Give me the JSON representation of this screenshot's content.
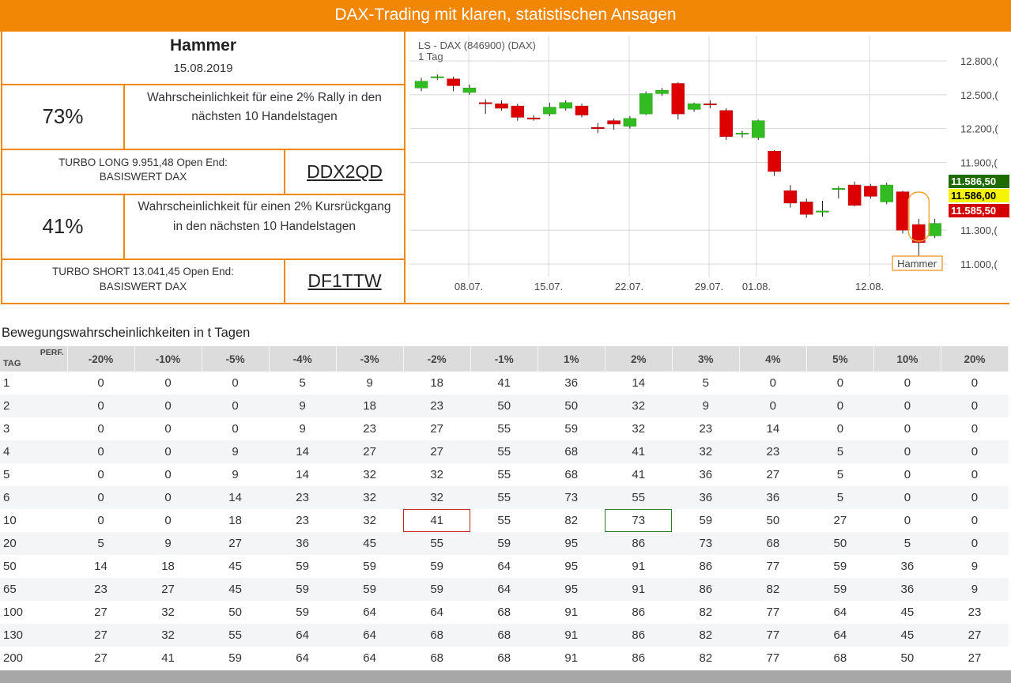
{
  "banner": "DAX-Trading mit klaren, statistischen Ansagen",
  "pattern": {
    "name": "Hammer",
    "date": "15.08.2019"
  },
  "long": {
    "pct": "73%",
    "desc_line1": "Wahrscheinlichkeit für eine 2% Rally in den",
    "desc_line2": "nächsten 10 Handelstagen",
    "turbo_line1": "TURBO LONG 9.951,48 Open End:",
    "turbo_line2": "BASISWERT DAX",
    "code": "DDX2QD"
  },
  "short": {
    "pct": "41%",
    "desc_line1": "Wahrscheinlichkeit für einen 2% Kursrückgang",
    "desc_line2": "in den nächsten 10 Handelstagen",
    "turbo_line1": "TURBO SHORT 13.041,45 Open End:",
    "turbo_line2": "BASISWERT DAX",
    "code": "DF1TTW"
  },
  "chart_data": {
    "type": "candlestick",
    "title": "LS - DAX (846900) (DAX)",
    "subtitle": "1 Tag",
    "y_ticks": [
      "12.800,(",
      "12.500,(",
      "12.200,(",
      "11.900,(",
      "11.300,(",
      "11.000,("
    ],
    "y_tick_values": [
      12800,
      12500,
      12200,
      11900,
      11300,
      11000
    ],
    "x_ticks": [
      "08.07.",
      "15.07.",
      "22.07.",
      "29.07.",
      "01.08.",
      "12.08."
    ],
    "price_tags": [
      {
        "label": "11.586,50",
        "color": "#1e6b00",
        "text_color": "#ffffff"
      },
      {
        "label": "11.586,00",
        "color": "#f5f500",
        "text_color": "#000000"
      },
      {
        "label": "11.585,50",
        "color": "#d40000",
        "text_color": "#ffffff"
      }
    ],
    "annotation": "Hammer",
    "up_color": "#33bb22",
    "down_color": "#dd0000",
    "candles": [
      {
        "o": 12560,
        "c": 12620,
        "h": 12650,
        "l": 12530
      },
      {
        "o": 12650,
        "c": 12660,
        "h": 12680,
        "l": 12630
      },
      {
        "o": 12640,
        "c": 12580,
        "h": 12660,
        "l": 12530
      },
      {
        "o": 12520,
        "c": 12560,
        "h": 12590,
        "l": 12500
      },
      {
        "o": 12430,
        "c": 12420,
        "h": 12460,
        "l": 12330
      },
      {
        "o": 12420,
        "c": 12380,
        "h": 12450,
        "l": 12360
      },
      {
        "o": 12400,
        "c": 12300,
        "h": 12420,
        "l": 12270
      },
      {
        "o": 12295,
        "c": 12285,
        "h": 12320,
        "l": 12270
      },
      {
        "o": 12330,
        "c": 12390,
        "h": 12430,
        "l": 12310
      },
      {
        "o": 12380,
        "c": 12430,
        "h": 12450,
        "l": 12360
      },
      {
        "o": 12400,
        "c": 12320,
        "h": 12420,
        "l": 12300
      },
      {
        "o": 12210,
        "c": 12200,
        "h": 12250,
        "l": 12160
      },
      {
        "o": 12270,
        "c": 12240,
        "h": 12290,
        "l": 12190
      },
      {
        "o": 12220,
        "c": 12290,
        "h": 12310,
        "l": 12200
      },
      {
        "o": 12330,
        "c": 12510,
        "h": 12530,
        "l": 12320
      },
      {
        "o": 12510,
        "c": 12540,
        "h": 12560,
        "l": 12490
      },
      {
        "o": 12600,
        "c": 12330,
        "h": 12610,
        "l": 12280
      },
      {
        "o": 12370,
        "c": 12420,
        "h": 12430,
        "l": 12350
      },
      {
        "o": 12420,
        "c": 12410,
        "h": 12450,
        "l": 12380
      },
      {
        "o": 12360,
        "c": 12130,
        "h": 12380,
        "l": 12100
      },
      {
        "o": 12150,
        "c": 12160,
        "h": 12180,
        "l": 12120
      },
      {
        "o": 12120,
        "c": 12270,
        "h": 12280,
        "l": 12100
      },
      {
        "o": 12000,
        "c": 11820,
        "h": 12010,
        "l": 11780
      },
      {
        "o": 11650,
        "c": 11540,
        "h": 11700,
        "l": 11500
      },
      {
        "o": 11550,
        "c": 11440,
        "h": 11580,
        "l": 11410
      },
      {
        "o": 11460,
        "c": 11470,
        "h": 11560,
        "l": 11420
      },
      {
        "o": 11660,
        "c": 11670,
        "h": 11690,
        "l": 11580
      },
      {
        "o": 11700,
        "c": 11520,
        "h": 11730,
        "l": 11510
      },
      {
        "o": 11690,
        "c": 11600,
        "h": 11710,
        "l": 11580
      },
      {
        "o": 11550,
        "c": 11700,
        "h": 11720,
        "l": 11530
      },
      {
        "o": 11640,
        "c": 11300,
        "h": 11650,
        "l": 11270
      },
      {
        "o": 11350,
        "c": 11190,
        "h": 11400,
        "l": 10960
      },
      {
        "o": 11250,
        "c": 11360,
        "h": 11400,
        "l": 11230
      }
    ]
  },
  "table_title": "Bewegungswahrscheinlichkeiten in t Tagen",
  "table": {
    "perf_label": "PERF.",
    "tag_label": "TAG",
    "columns": [
      "-20%",
      "-10%",
      "-5%",
      "-4%",
      "-3%",
      "-2%",
      "-1%",
      "1%",
      "2%",
      "3%",
      "4%",
      "5%",
      "10%",
      "20%"
    ],
    "rows": [
      {
        "tag": "1",
        "vals": [
          "0",
          "0",
          "0",
          "5",
          "9",
          "18",
          "41",
          "36",
          "14",
          "5",
          "0",
          "0",
          "0",
          "0"
        ]
      },
      {
        "tag": "2",
        "vals": [
          "0",
          "0",
          "0",
          "9",
          "18",
          "23",
          "50",
          "50",
          "32",
          "9",
          "0",
          "0",
          "0",
          "0"
        ]
      },
      {
        "tag": "3",
        "vals": [
          "0",
          "0",
          "0",
          "9",
          "23",
          "27",
          "55",
          "59",
          "32",
          "23",
          "14",
          "0",
          "0",
          "0"
        ]
      },
      {
        "tag": "4",
        "vals": [
          "0",
          "0",
          "9",
          "14",
          "27",
          "27",
          "55",
          "68",
          "41",
          "32",
          "23",
          "5",
          "0",
          "0"
        ]
      },
      {
        "tag": "5",
        "vals": [
          "0",
          "0",
          "9",
          "14",
          "32",
          "32",
          "55",
          "68",
          "41",
          "36",
          "27",
          "5",
          "0",
          "0"
        ]
      },
      {
        "tag": "6",
        "vals": [
          "0",
          "0",
          "14",
          "23",
          "32",
          "32",
          "55",
          "73",
          "55",
          "36",
          "36",
          "5",
          "0",
          "0"
        ]
      },
      {
        "tag": "10",
        "vals": [
          "0",
          "0",
          "18",
          "23",
          "32",
          "41",
          "55",
          "82",
          "73",
          "59",
          "50",
          "27",
          "0",
          "0"
        ]
      },
      {
        "tag": "20",
        "vals": [
          "5",
          "9",
          "27",
          "36",
          "45",
          "55",
          "59",
          "95",
          "86",
          "73",
          "68",
          "50",
          "5",
          "0"
        ]
      },
      {
        "tag": "50",
        "vals": [
          "14",
          "18",
          "45",
          "59",
          "59",
          "59",
          "64",
          "95",
          "91",
          "86",
          "77",
          "59",
          "36",
          "9"
        ]
      },
      {
        "tag": "65",
        "vals": [
          "23",
          "27",
          "45",
          "59",
          "59",
          "59",
          "64",
          "95",
          "91",
          "86",
          "82",
          "59",
          "36",
          "9"
        ]
      },
      {
        "tag": "100",
        "vals": [
          "27",
          "32",
          "50",
          "59",
          "64",
          "64",
          "68",
          "91",
          "86",
          "82",
          "77",
          "64",
          "45",
          "23"
        ]
      },
      {
        "tag": "130",
        "vals": [
          "27",
          "32",
          "55",
          "64",
          "64",
          "68",
          "68",
          "91",
          "86",
          "82",
          "77",
          "64",
          "45",
          "27"
        ]
      },
      {
        "tag": "200",
        "vals": [
          "27",
          "41",
          "59",
          "64",
          "64",
          "68",
          "68",
          "91",
          "86",
          "82",
          "77",
          "68",
          "50",
          "27"
        ]
      }
    ],
    "highlights": [
      {
        "row": "10",
        "col": "-2%",
        "color": "red"
      },
      {
        "row": "10",
        "col": "2%",
        "color": "green"
      }
    ]
  }
}
